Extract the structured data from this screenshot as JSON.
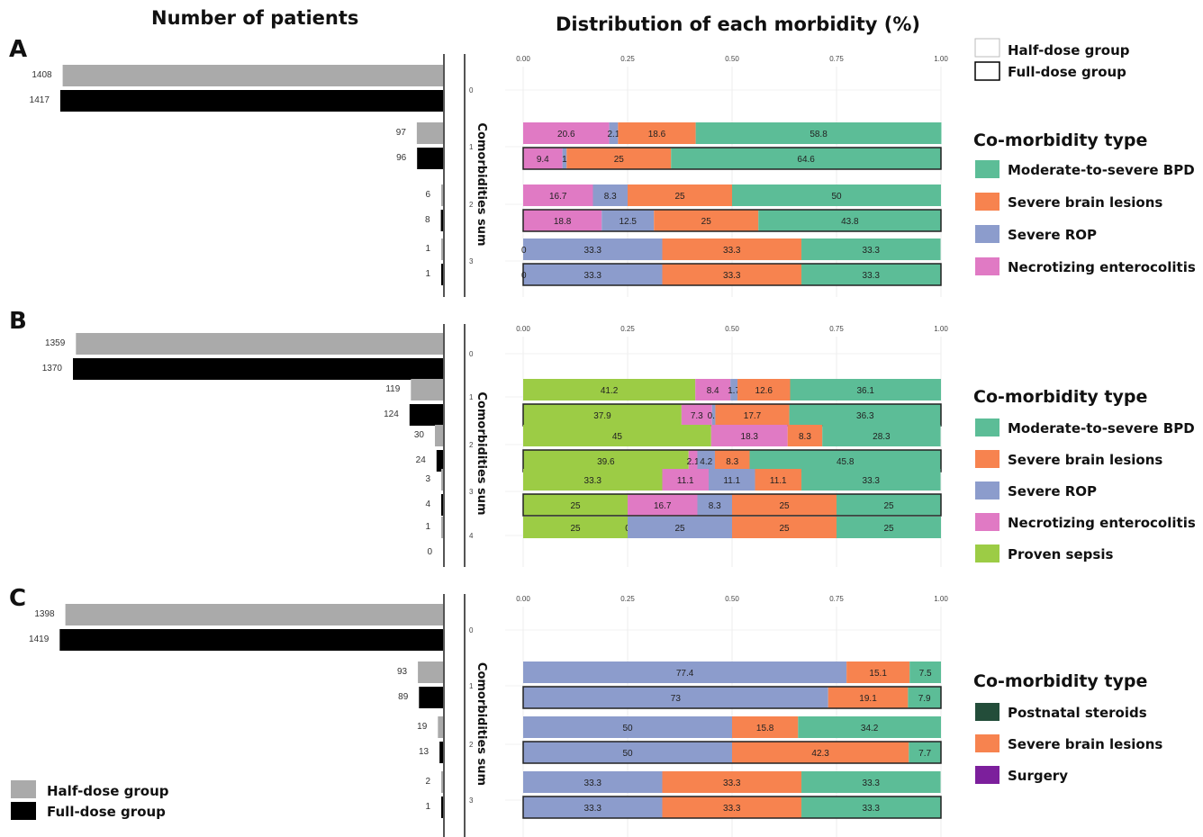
{
  "headings": {
    "left": "Number of patients",
    "right": "Distribution of each morbidity (%)"
  },
  "y_axis_label": "Comorbidities sum",
  "top_legend": {
    "half": "Half-dose group",
    "full": "Full-dose group"
  },
  "bottom_legend": {
    "half": "Half-dose group",
    "full": "Full-dose group"
  },
  "colors": {
    "half_bar": "#aaaaaa",
    "full_bar": "#000000",
    "Moderate-to-severe BPD": "#5cbd97",
    "Severe brain lesions": "#f7834f",
    "Severe ROP": "#8c9ccc",
    "Necrotizing enterocolitis": "#e07ac4",
    "Proven sepsis": "#9ccc45",
    "Postnatal steroids": "#234d3a",
    "Surgery": "#7c1f9c"
  },
  "chart_data": [
    {
      "type": "bar",
      "panel": "A",
      "legend_title": "Co-morbidity type",
      "legend": [
        "Moderate-to-severe BPD",
        "Severe brain lesions",
        "Severe ROP",
        "Necrotizing enterocolitis"
      ],
      "x_ticks": [
        "0.00",
        "0.25",
        "0.50",
        "0.75",
        "1.00"
      ],
      "xlim": [
        0,
        1
      ],
      "categories": [
        "0",
        "1",
        "2",
        "3"
      ],
      "counts": {
        "half": [
          1408,
          97,
          6,
          1
        ],
        "full": [
          1417,
          96,
          8,
          1
        ]
      },
      "distribution": {
        "half": [
          null,
          [
            {
              "type": "Necrotizing enterocolitis",
              "value": 20.6
            },
            {
              "type": "Severe ROP",
              "value": 2.1
            },
            {
              "type": "Severe brain lesions",
              "value": 18.6
            },
            {
              "type": "Moderate-to-severe BPD",
              "value": 58.8
            }
          ],
          [
            {
              "type": "Necrotizing enterocolitis",
              "value": 16.7
            },
            {
              "type": "Severe ROP",
              "value": 8.3
            },
            {
              "type": "Severe brain lesions",
              "value": 25
            },
            {
              "type": "Moderate-to-severe BPD",
              "value": 50
            }
          ],
          [
            {
              "type": "Severe ROP",
              "value": 33.3
            },
            {
              "type": "Severe brain lesions",
              "value": 33.3
            },
            {
              "type": "Moderate-to-severe BPD",
              "value": 33.3
            }
          ]
        ],
        "full": [
          null,
          [
            {
              "type": "Necrotizing enterocolitis",
              "value": 9.4
            },
            {
              "type": "Severe ROP",
              "value": 1
            },
            {
              "type": "Severe brain lesions",
              "value": 25
            },
            {
              "type": "Moderate-to-severe BPD",
              "value": 64.6
            }
          ],
          [
            {
              "type": "Necrotizing enterocolitis",
              "value": 18.8
            },
            {
              "type": "Severe ROP",
              "value": 12.5
            },
            {
              "type": "Severe brain lesions",
              "value": 25
            },
            {
              "type": "Moderate-to-severe BPD",
              "value": 43.8
            }
          ],
          [
            {
              "type": "Severe ROP",
              "value": 33.3
            },
            {
              "type": "Severe brain lesions",
              "value": 33.3
            },
            {
              "type": "Moderate-to-severe BPD",
              "value": 33.3
            }
          ]
        ]
      },
      "zero_labels": {
        "half": [
          null,
          null,
          null,
          "0"
        ],
        "full": [
          null,
          null,
          null,
          "0"
        ]
      }
    },
    {
      "type": "bar",
      "panel": "B",
      "legend_title": "Co-morbidity type",
      "legend": [
        "Moderate-to-severe BPD",
        "Severe brain lesions",
        "Severe ROP",
        "Necrotizing enterocolitis",
        "Proven sepsis"
      ],
      "x_ticks": [
        "0.00",
        "0.25",
        "0.50",
        "0.75",
        "1.00"
      ],
      "xlim": [
        0,
        1
      ],
      "categories": [
        "0",
        "1",
        "2",
        "3",
        "4"
      ],
      "counts": {
        "half": [
          1359,
          119,
          30,
          3,
          1
        ],
        "full": [
          1370,
          124,
          24,
          4,
          0
        ]
      },
      "distribution": {
        "half": [
          null,
          [
            {
              "type": "Proven sepsis",
              "value": 41.2
            },
            {
              "type": "Necrotizing enterocolitis",
              "value": 8.4
            },
            {
              "type": "Severe ROP",
              "value": 1.7
            },
            {
              "type": "Severe brain lesions",
              "value": 12.6
            },
            {
              "type": "Moderate-to-severe BPD",
              "value": 36.1
            }
          ],
          [
            {
              "type": "Proven sepsis",
              "value": 45
            },
            {
              "type": "Necrotizing enterocolitis",
              "value": 18.3
            },
            {
              "type": "Severe ROP",
              "value": 0
            },
            {
              "type": "Severe brain lesions",
              "value": 8.3
            },
            {
              "type": "Moderate-to-severe BPD",
              "value": 28.3
            }
          ],
          [
            {
              "type": "Proven sepsis",
              "value": 33.3
            },
            {
              "type": "Necrotizing enterocolitis",
              "value": 11.1
            },
            {
              "type": "Severe ROP",
              "value": 11.1
            },
            {
              "type": "Severe brain lesions",
              "value": 11.1
            },
            {
              "type": "Moderate-to-severe BPD",
              "value": 33.3
            }
          ],
          [
            {
              "type": "Proven sepsis",
              "value": 25
            },
            {
              "type": "Necrotizing enterocolitis",
              "value": 0
            },
            {
              "type": "Severe ROP",
              "value": 25
            },
            {
              "type": "Severe brain lesions",
              "value": 25
            },
            {
              "type": "Moderate-to-severe BPD",
              "value": 25
            }
          ]
        ],
        "full": [
          null,
          [
            {
              "type": "Proven sepsis",
              "value": 37.9
            },
            {
              "type": "Necrotizing enterocolitis",
              "value": 7.3
            },
            {
              "type": "Severe ROP",
              "value": 0.8
            },
            {
              "type": "Severe brain lesions",
              "value": 17.7
            },
            {
              "type": "Moderate-to-severe BPD",
              "value": 36.3
            }
          ],
          [
            {
              "type": "Proven sepsis",
              "value": 39.6
            },
            {
              "type": "Necrotizing enterocolitis",
              "value": 2.1
            },
            {
              "type": "Severe ROP",
              "value": 4.2
            },
            {
              "type": "Severe brain lesions",
              "value": 8.3
            },
            {
              "type": "Moderate-to-severe BPD",
              "value": 45.8
            }
          ],
          [
            {
              "type": "Proven sepsis",
              "value": 25
            },
            {
              "type": "Necrotizing enterocolitis",
              "value": 16.7
            },
            {
              "type": "Severe ROP",
              "value": 8.3
            },
            {
              "type": "Severe brain lesions",
              "value": 25
            },
            {
              "type": "Moderate-to-severe BPD",
              "value": 25
            }
          ],
          null
        ]
      },
      "zero_labels": {
        "half": [
          null,
          null,
          null,
          null,
          null
        ],
        "full": [
          null,
          null,
          null,
          null,
          null
        ]
      }
    },
    {
      "type": "bar",
      "panel": "C",
      "legend_title": "Co-morbidity type",
      "legend": [
        "Postnatal steroids",
        "Severe brain lesions",
        "Surgery"
      ],
      "x_ticks": [
        "0.00",
        "0.25",
        "0.50",
        "0.75",
        "1.00"
      ],
      "xlim": [
        0,
        1
      ],
      "categories": [
        "0",
        "1",
        "2",
        "3"
      ],
      "counts": {
        "half": [
          1398,
          93,
          19,
          2
        ],
        "full": [
          1419,
          89,
          13,
          1
        ]
      },
      "distribution": {
        "half": [
          null,
          [
            {
              "type": "Severe ROP",
              "value": 77.4
            },
            {
              "type": "Severe brain lesions",
              "value": 15.1
            },
            {
              "type": "Moderate-to-severe BPD",
              "value": 7.5
            }
          ],
          [
            {
              "type": "Severe ROP",
              "value": 50
            },
            {
              "type": "Severe brain lesions",
              "value": 15.8
            },
            {
              "type": "Moderate-to-severe BPD",
              "value": 34.2
            }
          ],
          [
            {
              "type": "Severe ROP",
              "value": 33.3
            },
            {
              "type": "Severe brain lesions",
              "value": 33.3
            },
            {
              "type": "Moderate-to-severe BPD",
              "value": 33.3
            }
          ]
        ],
        "full": [
          null,
          [
            {
              "type": "Severe ROP",
              "value": 73
            },
            {
              "type": "Severe brain lesions",
              "value": 19.1
            },
            {
              "type": "Moderate-to-severe BPD",
              "value": 7.9
            }
          ],
          [
            {
              "type": "Severe ROP",
              "value": 50
            },
            {
              "type": "Severe brain lesions",
              "value": 42.3
            },
            {
              "type": "Moderate-to-severe BPD",
              "value": 7.7
            }
          ],
          [
            {
              "type": "Severe ROP",
              "value": 33.3
            },
            {
              "type": "Severe brain lesions",
              "value": 33.3
            },
            {
              "type": "Moderate-to-severe BPD",
              "value": 33.3
            }
          ]
        ]
      },
      "zero_labels": {
        "half": [
          null,
          null,
          null,
          null
        ],
        "full": [
          null,
          null,
          null,
          null
        ]
      }
    }
  ]
}
